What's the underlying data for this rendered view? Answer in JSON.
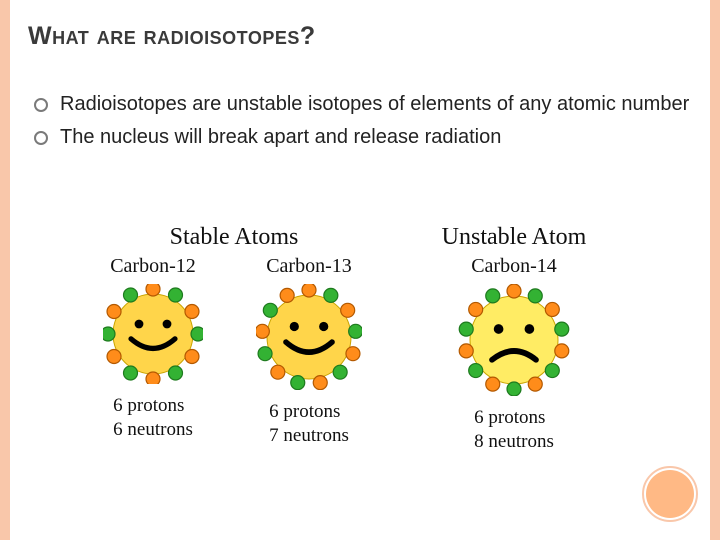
{
  "colors": {
    "accent": "#f9c7aa",
    "accent_fill": "#ffb985",
    "title_text": "#3a3a3a",
    "body_text": "#222222",
    "diagram_text": "#111111",
    "happy_face": "#ffd54a",
    "sad_face": "#ffec64",
    "proton_fill": "#ff8c1a",
    "proton_edge": "#b35900",
    "neutron_fill": "#33b233",
    "neutron_edge": "#1e7a1e",
    "face_line": "#000000"
  },
  "title": "What are radioisotopes?",
  "bullets": [
    "Radioisotopes are unstable isotopes of elements of any atomic number",
    "The nucleus will break apart and release radiation"
  ],
  "diagram": {
    "group_stable": "Stable Atoms",
    "group_unstable": "Unstable Atom",
    "atoms": [
      {
        "key": "c12",
        "name": "Carbon-12",
        "protons_line": "6 protons",
        "neutrons_line": "6 neutrons",
        "particle_count": 12,
        "mood": "happy",
        "radius": 40,
        "group": "stable"
      },
      {
        "key": "c13",
        "name": "Carbon-13",
        "protons_line": "6 protons",
        "neutrons_line": "7 neutrons",
        "particle_count": 13,
        "mood": "happy",
        "radius": 42,
        "group": "stable"
      },
      {
        "key": "c14",
        "name": "Carbon-14",
        "protons_line": "6 protons",
        "neutrons_line": "8 neutrons",
        "particle_count": 14,
        "mood": "sad",
        "radius": 44,
        "group": "unstable"
      }
    ]
  }
}
